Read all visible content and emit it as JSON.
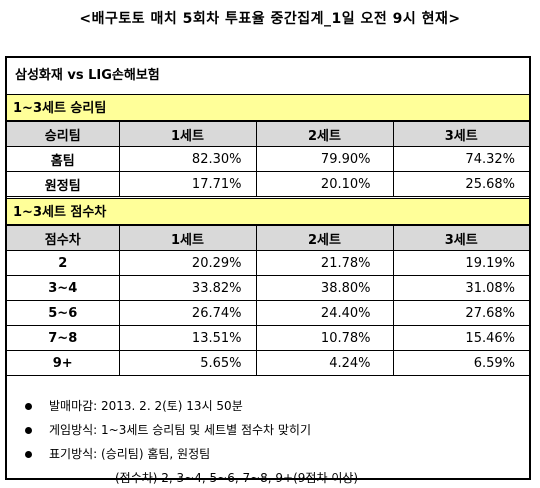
{
  "title": "<배구토토 매치 5회차 투표율 중간집계_1일 오전 9시 현재>",
  "match": "삼성화재 vs LIG손해보험",
  "section1": {
    "heading": "1~3세트 승리팀",
    "columns": [
      "승리팀",
      "1세트",
      "2세트",
      "3세트"
    ],
    "rows": [
      {
        "label": "홈팀",
        "values": [
          "82.30%",
          "79.90%",
          "74.32%"
        ]
      },
      {
        "label": "원정팀",
        "values": [
          "17.71%",
          "20.10%",
          "25.68%"
        ]
      }
    ]
  },
  "section2": {
    "heading": "1~3세트 점수차",
    "columns": [
      "점수차",
      "1세트",
      "2세트",
      "3세트"
    ],
    "rows": [
      {
        "label": "2",
        "values": [
          "20.29%",
          "21.78%",
          "19.19%"
        ]
      },
      {
        "label": "3~4",
        "values": [
          "33.82%",
          "38.80%",
          "31.08%"
        ]
      },
      {
        "label": "5~6",
        "values": [
          "26.74%",
          "24.40%",
          "27.68%"
        ]
      },
      {
        "label": "7~8",
        "values": [
          "13.51%",
          "10.78%",
          "15.46%"
        ]
      },
      {
        "label": "9+",
        "values": [
          "5.65%",
          "4.24%",
          "6.59%"
        ]
      }
    ]
  },
  "notes": {
    "deadline": "발매마감: 2013. 2. 2(토) 13시 50분",
    "method": "게임방식: 1~3세트 승리팀 및 세트별 점수차 맞히기",
    "marking": "표기방식: (승리팀) 홈팀, 원정팀",
    "marking_cont": "(점수차) 2, 3~4, 5~6, 7~8, 9+(9점차 이상)"
  }
}
